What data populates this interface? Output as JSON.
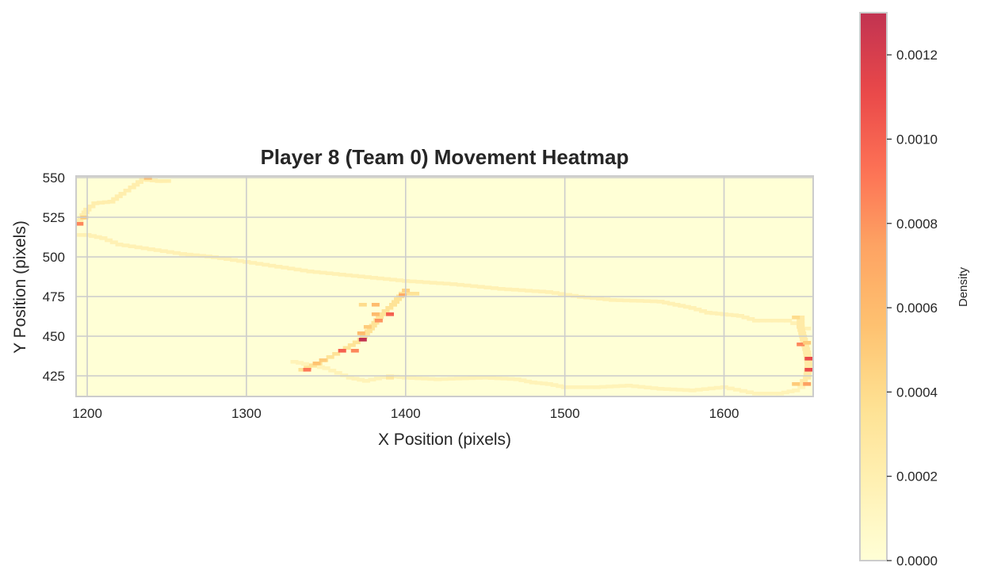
{
  "chart_data": {
    "type": "heatmap",
    "title": "Player 8 (Team 0) Movement Heatmap",
    "xlabel": "X Position (pixels)",
    "ylabel": "Y Position (pixels)",
    "xlim": [
      1193,
      1656
    ],
    "ylim": [
      412,
      551
    ],
    "xticks": [
      1200,
      1300,
      1400,
      1500,
      1600
    ],
    "yticks": [
      425,
      450,
      475,
      500,
      525,
      550
    ],
    "grid": true,
    "cell_size": [
      4.7,
      2.0
    ],
    "colormap": [
      "#ffffcc",
      "#ffeda0",
      "#fed976",
      "#feb24c",
      "#fd8d3c",
      "#fc4e2a",
      "#e31a1c",
      "#b10026"
    ],
    "colormap_alpha": 0.8,
    "colorbar": {
      "label": "Density",
      "range": [
        0,
        0.0013
      ],
      "ticks": [
        0.0,
        0.0002,
        0.0004,
        0.0006,
        0.0008,
        0.001,
        0.0012
      ],
      "tick_labels": [
        "0.0000",
        "0.0002",
        "0.0004",
        "0.0006",
        "0.0008",
        "0.0010",
        "0.0012"
      ]
    },
    "trajectories": [
      {
        "points": [
          [
            1195,
            514
          ],
          [
            1200,
            514
          ],
          [
            1210,
            512
          ],
          [
            1220,
            508
          ],
          [
            1240,
            505
          ],
          [
            1260,
            502
          ],
          [
            1280,
            500
          ],
          [
            1300,
            497
          ],
          [
            1320,
            494
          ],
          [
            1340,
            491
          ],
          [
            1360,
            489
          ],
          [
            1380,
            487
          ],
          [
            1400,
            485
          ],
          [
            1430,
            483
          ],
          [
            1460,
            480
          ],
          [
            1490,
            478
          ],
          [
            1510,
            475
          ],
          [
            1530,
            473
          ],
          [
            1560,
            472
          ],
          [
            1570,
            470
          ],
          [
            1580,
            468
          ],
          [
            1590,
            465
          ],
          [
            1600,
            464
          ],
          [
            1610,
            463
          ],
          [
            1620,
            460
          ],
          [
            1640,
            460
          ],
          [
            1652,
            455
          ]
        ],
        "density": 0.00018
      },
      {
        "points": [
          [
            1195,
            523
          ],
          [
            1200,
            530
          ],
          [
            1205,
            534
          ],
          [
            1215,
            535
          ],
          [
            1222,
            540
          ],
          [
            1228,
            544
          ],
          [
            1235,
            549
          ],
          [
            1245,
            548
          ],
          [
            1250,
            548
          ]
        ],
        "density": 0.00022
      },
      {
        "points": [
          [
            1330,
            434
          ],
          [
            1340,
            432
          ],
          [
            1350,
            430
          ],
          [
            1365,
            424
          ],
          [
            1375,
            422
          ],
          [
            1390,
            425
          ],
          [
            1400,
            424
          ],
          [
            1420,
            423
          ],
          [
            1450,
            424
          ],
          [
            1470,
            423
          ],
          [
            1480,
            421
          ],
          [
            1490,
            420
          ],
          [
            1500,
            418
          ],
          [
            1520,
            418
          ],
          [
            1540,
            419
          ],
          [
            1560,
            417
          ],
          [
            1580,
            416
          ],
          [
            1600,
            418
          ],
          [
            1620,
            414
          ],
          [
            1635,
            414
          ],
          [
            1645,
            416
          ],
          [
            1652,
            420
          ]
        ],
        "density": 0.00016
      },
      {
        "points": [
          [
            1335,
            429
          ],
          [
            1345,
            433
          ],
          [
            1360,
            441
          ],
          [
            1372,
            448
          ],
          [
            1378,
            455
          ],
          [
            1385,
            464
          ],
          [
            1392,
            470
          ],
          [
            1398,
            477
          ],
          [
            1406,
            477
          ]
        ],
        "density": 0.00034
      },
      {
        "points": [
          [
            1648,
            462
          ],
          [
            1648,
            456
          ],
          [
            1650,
            448
          ],
          [
            1652,
            440
          ],
          [
            1653,
            432
          ],
          [
            1652,
            424
          ],
          [
            1648,
            420
          ]
        ],
        "density": 0.00026
      }
    ],
    "hotspots": [
      {
        "x": 1195,
        "y": 521,
        "density": 0.00085
      },
      {
        "x": 1198,
        "y": 525,
        "density": 0.0005
      },
      {
        "x": 1238,
        "y": 550,
        "density": 0.0006
      },
      {
        "x": 1338,
        "y": 429,
        "density": 0.0009
      },
      {
        "x": 1344,
        "y": 433,
        "density": 0.00055
      },
      {
        "x": 1348,
        "y": 435,
        "density": 0.0005
      },
      {
        "x": 1360,
        "y": 441,
        "density": 0.001
      },
      {
        "x": 1368,
        "y": 441,
        "density": 0.00085
      },
      {
        "x": 1373,
        "y": 448,
        "density": 0.0013
      },
      {
        "x": 1372,
        "y": 452,
        "density": 0.0006
      },
      {
        "x": 1376,
        "y": 456,
        "density": 0.0005
      },
      {
        "x": 1383,
        "y": 460,
        "density": 0.0008
      },
      {
        "x": 1390,
        "y": 464,
        "density": 0.001
      },
      {
        "x": 1381,
        "y": 464,
        "density": 0.0006
      },
      {
        "x": 1381,
        "y": 470,
        "density": 0.0006
      },
      {
        "x": 1373,
        "y": 470,
        "density": 0.0004
      },
      {
        "x": 1398,
        "y": 476,
        "density": 0.0007
      },
      {
        "x": 1400,
        "y": 479,
        "density": 0.00045
      },
      {
        "x": 1648,
        "y": 445,
        "density": 0.00085
      },
      {
        "x": 1653,
        "y": 436,
        "density": 0.0011
      },
      {
        "x": 1653,
        "y": 429,
        "density": 0.0011
      },
      {
        "x": 1652,
        "y": 446,
        "density": 0.0005
      },
      {
        "x": 1652,
        "y": 420,
        "density": 0.00075
      },
      {
        "x": 1645,
        "y": 420,
        "density": 0.0005
      },
      {
        "x": 1645,
        "y": 462,
        "density": 0.0004
      },
      {
        "x": 1390,
        "y": 424,
        "density": 0.0003
      }
    ]
  }
}
